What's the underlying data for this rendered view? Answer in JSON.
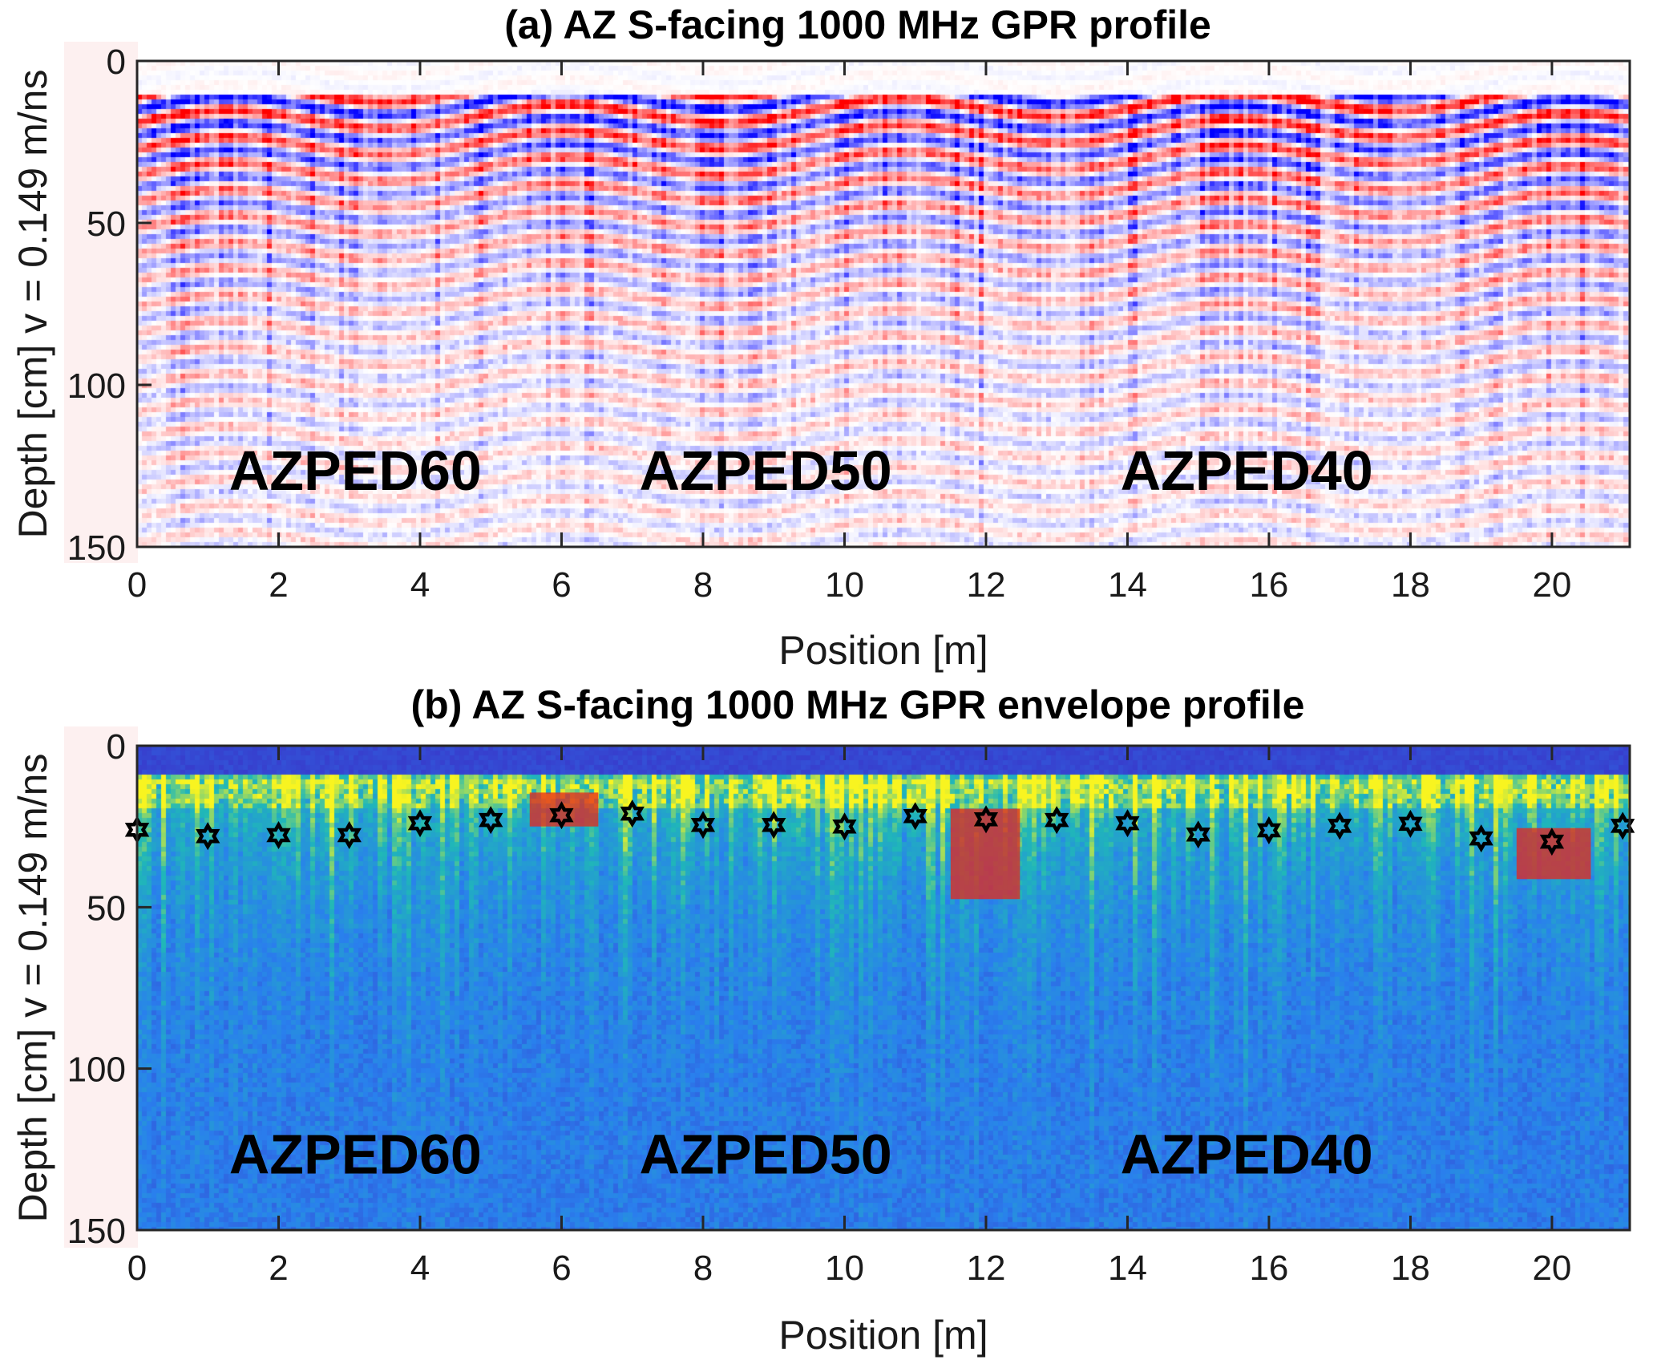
{
  "chart_data": [
    {
      "type": "heatmap",
      "panel": "a",
      "title": "(a)  AZ S-facing 1000 MHz GPR profile",
      "xlabel": "Position [m]",
      "ylabel": "Depth [cm] v = 0.149 m/ns",
      "xlim": [
        0,
        21.1
      ],
      "ylim": [
        150,
        0
      ],
      "xticks": [
        0,
        2,
        4,
        6,
        8,
        10,
        12,
        14,
        16,
        18,
        20
      ],
      "yticks": [
        0,
        50,
        100,
        150
      ],
      "colormap": "red-white-blue (diverging amplitude)",
      "colors": {
        "positive": "#ff0000",
        "zero": "#ffffff",
        "negative": "#0000ff"
      },
      "highlight_boxes": [
        {
          "x0": 5.5,
          "x1": 6.6,
          "y0": 0,
          "y1": 150
        },
        {
          "x0": 11.5,
          "x1": 12.5,
          "y0": 0,
          "y1": 150
        },
        {
          "x0": 19.5,
          "x1": 20.6,
          "y0": 0,
          "y1": 150
        }
      ],
      "annotations": [
        {
          "text": "AZPED60",
          "x": 1.3,
          "y": 126
        },
        {
          "text": "AZPED50",
          "x": 7.1,
          "y": 126
        },
        {
          "text": "AZPED40",
          "x": 13.9,
          "y": 126
        }
      ]
    },
    {
      "type": "heatmap",
      "panel": "b",
      "title": "(b)  AZ S-facing 1000 MHz GPR envelope profile",
      "xlabel": "Position [m]",
      "ylabel": "Depth [cm] v = 0.149 m/ns",
      "xlim": [
        0,
        21.1
      ],
      "ylim": [
        150,
        0
      ],
      "xticks": [
        0,
        2,
        4,
        6,
        8,
        10,
        12,
        14,
        16,
        18,
        20
      ],
      "yticks": [
        0,
        50,
        100,
        150
      ],
      "colormap": "parula (envelope amplitude)",
      "colors": {
        "low": "#3a33c8",
        "mid": "#2a80ee",
        "high_mid": "#20b8b8",
        "high": "#f8f420"
      },
      "highlight_boxes": [
        {
          "x0": 5.5,
          "x1": 6.6,
          "y0": 0,
          "y1": 150
        },
        {
          "x0": 11.5,
          "x1": 12.5,
          "y0": 0,
          "y1": 150
        },
        {
          "x0": 19.5,
          "x1": 20.6,
          "y0": 0,
          "y1": 150
        }
      ],
      "shaded_regions": [
        {
          "x0": 5.55,
          "x1": 6.52,
          "y0": 14.5,
          "y1": 25,
          "color": "#e8261a"
        },
        {
          "x0": 11.5,
          "x1": 12.48,
          "y0": 19.5,
          "y1": 47.5,
          "color": "#e8261a"
        },
        {
          "x0": 19.5,
          "x1": 20.55,
          "y0": 25.5,
          "y1": 41.3,
          "color": "#e8261a"
        }
      ],
      "series": [
        {
          "name": "markers (hexagram)",
          "x": [
            0,
            1,
            2,
            3,
            4,
            5,
            6,
            7,
            8,
            9,
            10,
            11,
            12,
            13,
            14,
            15,
            16,
            17,
            18,
            19,
            20,
            21
          ],
          "y": [
            26,
            28,
            27.7,
            27.7,
            24,
            23,
            21.5,
            21,
            24.5,
            24.5,
            25,
            21.8,
            22.8,
            23,
            24,
            27.5,
            26.2,
            24.8,
            24.2,
            28.7,
            29.7,
            24.8
          ]
        }
      ],
      "annotations": [
        {
          "text": "AZPED60",
          "x": 1.3,
          "y": 126
        },
        {
          "text": "AZPED50",
          "x": 7.1,
          "y": 126
        },
        {
          "text": "AZPED40",
          "x": 13.9,
          "y": 126
        }
      ]
    }
  ]
}
